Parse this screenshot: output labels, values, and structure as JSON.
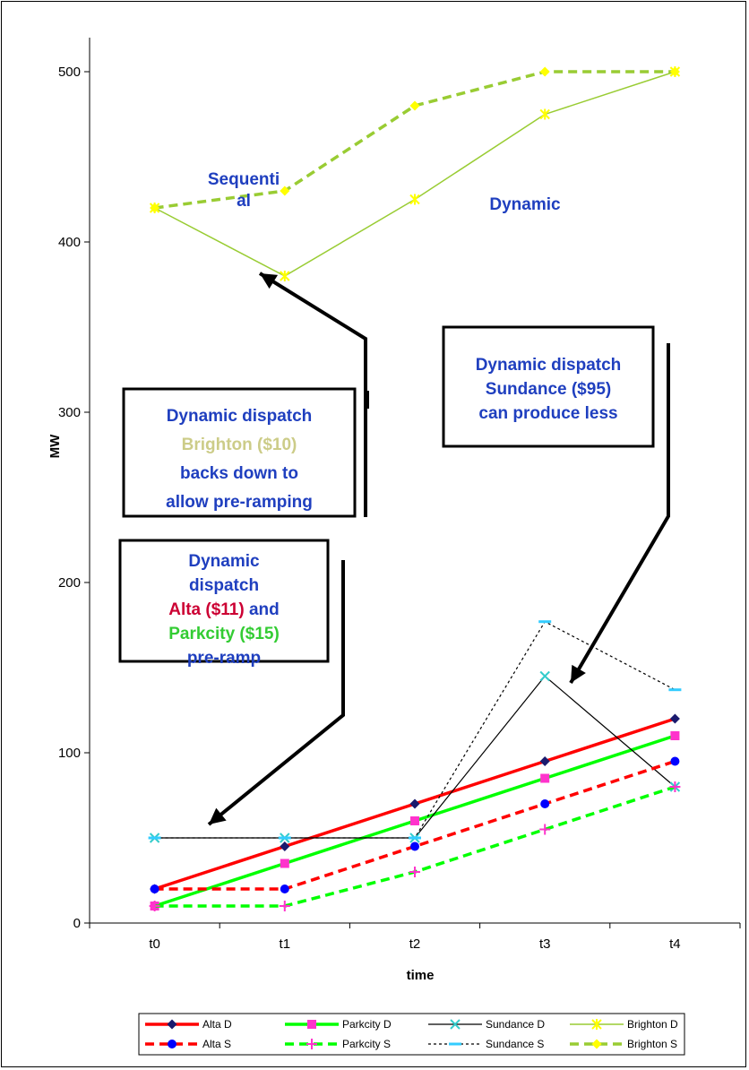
{
  "chart_data": {
    "type": "line",
    "title": "",
    "xlabel": "time",
    "ylabel": "MW",
    "categories": [
      "t0",
      "t1",
      "t2",
      "t3",
      "t4"
    ],
    "ylim": [
      0,
      520
    ],
    "yticks": [
      0,
      100,
      200,
      300,
      400,
      500
    ],
    "grid": false,
    "legend_position": "bottom",
    "series": [
      {
        "name": "Alta D",
        "values": [
          20,
          45,
          70,
          95,
          120
        ],
        "color": "#ff0000",
        "style": "solid",
        "marker": "diamond",
        "marker_color": "#1a1a6e"
      },
      {
        "name": "Parkcity D",
        "values": [
          10,
          35,
          60,
          85,
          110
        ],
        "color": "#00ff00",
        "style": "solid",
        "marker": "square",
        "marker_color": "#ff33cc"
      },
      {
        "name": "Sundance D",
        "values": [
          50,
          50,
          50,
          145,
          80
        ],
        "color": "#000000",
        "style": "solid",
        "marker": "x",
        "marker_color": "#33cccc"
      },
      {
        "name": "Brighton D",
        "values": [
          420,
          380,
          425,
          475,
          500
        ],
        "color": "#99cc33",
        "style": "solid",
        "marker": "asterisk",
        "marker_color": "#ffff00"
      },
      {
        "name": "Alta S",
        "values": [
          20,
          20,
          45,
          70,
          95
        ],
        "color": "#ff0000",
        "style": "dashed",
        "marker": "circle",
        "marker_color": "#0000ff"
      },
      {
        "name": "Parkcity S",
        "values": [
          10,
          10,
          30,
          55,
          80
        ],
        "color": "#00ff00",
        "style": "dashed",
        "marker": "plus",
        "marker_color": "#ff33cc"
      },
      {
        "name": "Sundance S",
        "values": [
          50,
          50,
          50,
          177,
          137
        ],
        "color": "#000000",
        "style": "dotted",
        "marker": "dash",
        "marker_color": "#33ccff"
      },
      {
        "name": "Brighton S",
        "values": [
          420,
          430,
          480,
          500,
          500
        ],
        "color": "#99cc33",
        "style": "dashed",
        "marker": "diamond",
        "marker_color": "#ffff00"
      }
    ],
    "annotations": [
      {
        "key": "sequential",
        "lines": [
          "Sequenti",
          "al"
        ],
        "color": "#1f3fbf"
      },
      {
        "key": "dynamic",
        "lines": [
          "Dynamic"
        ],
        "color": "#1f3fbf"
      },
      {
        "key": "sundance",
        "lines": [
          "Dynamic dispatch",
          "Sundance ($95)",
          "can produce less"
        ],
        "color": "#1f3fbf"
      },
      {
        "key": "brighton",
        "lines": [
          [
            {
              "t": "Dynamic dispatch",
              "c": "#1f3fbf"
            }
          ],
          [
            {
              "t": "Brighton ($10)",
              "c": "#cccc88"
            }
          ],
          [
            {
              "t": "backs down to",
              "c": "#1f3fbf"
            }
          ],
          [
            {
              "t": "allow pre-ramping",
              "c": "#1f3fbf"
            }
          ]
        ]
      },
      {
        "key": "alta",
        "lines": [
          [
            {
              "t": "Dynamic",
              "c": "#1f3fbf"
            }
          ],
          [
            {
              "t": "dispatch",
              "c": "#1f3fbf"
            }
          ],
          [
            {
              "t": "Alta ($11) ",
              "c": "#cc0033"
            },
            {
              "t": "and",
              "c": "#1f3fbf"
            }
          ],
          [
            {
              "t": "Parkcity ($15)",
              "c": "#33cc33"
            }
          ],
          [
            {
              "t": "pre-ramp",
              "c": "#1f3fbf"
            }
          ]
        ]
      }
    ]
  }
}
